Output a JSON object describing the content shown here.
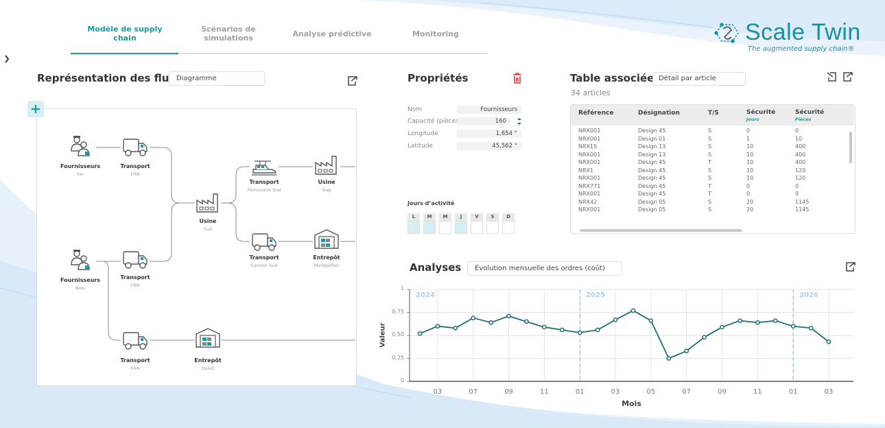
{
  "nav": {
    "tabs": [
      "Modèle de supply chain",
      "Scénarios de simulations",
      "Analyse prédictive",
      "Monitoring"
    ]
  },
  "logo": {
    "name": "Scale Twin",
    "tagline": "The augmented supply chain®"
  },
  "flux": {
    "title": "Représentation des flux",
    "view": "Diagramme",
    "nodes": [
      {
        "label": "Fournisseurs",
        "detail": "Fer"
      },
      {
        "label": "Transport",
        "detail": "FRN"
      },
      {
        "label": "Transport",
        "detail": "Ferroviaire Sud"
      },
      {
        "label": "Usine",
        "detail": "Gap"
      },
      {
        "label": "Usine",
        "detail": "Sud"
      },
      {
        "label": "Transport",
        "detail": "Camion Sud"
      },
      {
        "label": "Entrepôt",
        "detail": "Montpellier"
      },
      {
        "label": "Fournisseurs",
        "detail": "Bois"
      },
      {
        "label": "Transport",
        "detail": "FRN"
      },
      {
        "label": "Transport",
        "detail": "FRN"
      },
      {
        "label": "Entrepôt",
        "detail": "Ouest"
      }
    ]
  },
  "properties": {
    "title": "Propriétés",
    "fields": [
      {
        "label": "Nom",
        "value": "Fournisseurs"
      },
      {
        "label": "Capacité (pièces/jour)",
        "value": 160
      },
      {
        "label": "Longitude",
        "value": "1,654 °"
      },
      {
        "label": "Latitude",
        "value": "45,562 °"
      }
    ],
    "days_title": "Jours d’activité",
    "days": [
      "L",
      "M",
      "M",
      "J",
      "V",
      "S",
      "D"
    ],
    "days_checked": [
      true,
      true,
      false,
      true,
      false,
      false,
      false
    ]
  },
  "table": {
    "title": "Table associée",
    "view": "Détail par article",
    "count": "34 articles",
    "headers": [
      "Référence",
      "Désignation",
      "T/S",
      "Sécurité",
      "Sécurité"
    ],
    "header_units": [
      null,
      null,
      null,
      "Jours",
      "Pièces"
    ],
    "rows": [
      [
        "NRX001",
        "Design 45",
        "S",
        0,
        0
      ],
      [
        "NRX001",
        "Design 01",
        "S",
        1,
        10
      ],
      [
        "NRX15",
        "Design 13",
        "S",
        10,
        400
      ],
      [
        "NRX001",
        "Design 13",
        "S",
        10,
        400
      ],
      [
        "NRX001",
        "Design 45",
        "T",
        10,
        400
      ],
      [
        "NRX1",
        "Design 45",
        "S",
        10,
        120
      ],
      [
        "NRX001",
        "Design 45",
        "S",
        10,
        120
      ],
      [
        "NRX771",
        "Design 45",
        "T",
        0,
        0
      ],
      [
        "NRX001",
        "Design 45",
        "T",
        0,
        0
      ],
      [
        "NRX42",
        "Design 05",
        "S",
        20,
        1145
      ],
      [
        "NRX001",
        "Design 05",
        "S",
        20,
        1145
      ]
    ]
  },
  "analyses": {
    "title": "Analyses",
    "view": "Évolution mensuelle des ordres (coût)",
    "chart_data": {
      "type": "line",
      "x_label": "Mois",
      "y_label": "Valeur",
      "categories": [
        null,
        "03",
        null,
        "07",
        null,
        "09",
        null,
        "11",
        null,
        "01",
        null,
        "03",
        null,
        "05",
        null,
        "07",
        null,
        "09",
        null,
        "11",
        null,
        "01",
        null,
        "03"
      ],
      "years": [
        "2024",
        null,
        null,
        null,
        null,
        null,
        null,
        null,
        null,
        "2025",
        null,
        null,
        null,
        null,
        null,
        null,
        null,
        null,
        null,
        null,
        null,
        "2026",
        null,
        null
      ],
      "values": [
        0.52,
        0.6,
        0.58,
        0.69,
        0.64,
        0.71,
        0.65,
        0.59,
        0.56,
        0.53,
        0.56,
        0.67,
        0.77,
        0.66,
        0.25,
        0.33,
        0.48,
        0.59,
        0.66,
        0.64,
        0.66,
        0.6,
        0.58,
        0.43
      ],
      "color": "#1e6e74",
      "ylim": [
        0,
        1
      ],
      "yticks": [
        0,
        0.25,
        {
          "value": 0.5,
          "label": "0.50"
        },
        0.75,
        1
      ],
      "grid": true
    }
  }
}
